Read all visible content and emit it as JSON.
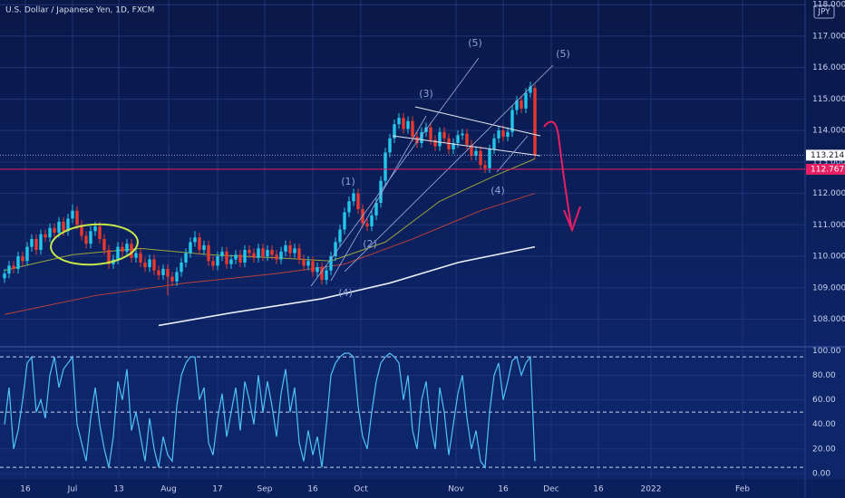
{
  "chart_data": [
    {
      "type": "candlestick",
      "title": "U.S. Dollar / Japanese Yen, 1D, FXCM",
      "currency": "JPY",
      "candles": {
        "open": [
          109.3,
          109.45,
          109.7,
          109.6,
          110.0,
          109.85,
          110.3,
          110.55,
          110.2,
          110.7,
          110.6,
          110.9,
          110.75,
          111.1,
          110.8,
          111.2,
          111.45,
          111.0,
          110.65,
          110.4,
          110.8,
          110.95,
          110.55,
          110.2,
          109.75,
          109.9,
          110.3,
          110.15,
          110.4,
          109.95,
          110.1,
          109.8,
          109.65,
          109.9,
          109.55,
          109.4,
          109.6,
          109.35,
          109.2,
          109.5,
          109.8,
          110.1,
          110.45,
          110.6,
          110.2,
          110.35,
          109.85,
          109.7,
          110.0,
          110.15,
          109.75,
          109.9,
          110.05,
          109.8,
          110.2,
          110.1,
          109.95,
          110.25,
          110.0,
          110.2,
          110.05,
          109.9,
          110.15,
          110.35,
          110.1,
          110.25,
          109.9,
          109.7,
          109.85,
          109.5,
          109.65,
          109.25,
          109.55,
          110.0,
          110.45,
          110.85,
          111.4,
          111.75,
          112.0,
          111.5,
          111.05,
          110.95,
          111.3,
          111.7,
          112.4,
          113.3,
          113.75,
          114.2,
          114.4,
          114.05,
          114.3,
          113.8,
          113.6,
          113.95,
          114.1,
          113.7,
          113.5,
          113.95,
          113.75,
          113.4,
          113.6,
          113.85,
          113.9,
          113.55,
          113.2,
          113.35,
          112.9,
          112.8,
          113.4,
          113.75,
          114.0,
          113.8,
          113.95,
          114.65,
          114.95,
          114.7,
          115.2,
          115.35
        ],
        "high": [
          109.6,
          109.85,
          109.85,
          110.15,
          110.15,
          110.45,
          110.7,
          110.7,
          110.85,
          110.85,
          111.05,
          111.05,
          111.25,
          111.25,
          111.35,
          111.65,
          111.6,
          111.15,
          110.8,
          110.95,
          111.1,
          111.1,
          110.7,
          110.35,
          110.05,
          110.45,
          110.45,
          110.55,
          110.55,
          110.25,
          110.25,
          109.95,
          110.05,
          110.05,
          109.7,
          109.75,
          109.75,
          109.5,
          109.65,
          109.95,
          110.25,
          110.6,
          110.8,
          110.75,
          110.5,
          110.5,
          110.0,
          110.15,
          110.3,
          110.3,
          110.05,
          110.2,
          110.2,
          110.35,
          110.35,
          110.25,
          110.4,
          110.4,
          110.35,
          110.35,
          110.2,
          110.3,
          110.5,
          110.5,
          110.4,
          110.4,
          110.05,
          110.0,
          110.0,
          109.8,
          109.8,
          109.7,
          110.15,
          110.6,
          111.0,
          111.55,
          111.9,
          112.15,
          112.15,
          111.65,
          111.2,
          111.45,
          111.85,
          112.55,
          113.45,
          113.9,
          114.35,
          114.55,
          114.55,
          114.45,
          114.45,
          113.95,
          114.1,
          114.25,
          114.25,
          113.85,
          114.1,
          114.1,
          113.9,
          113.75,
          114.0,
          114.05,
          114.05,
          113.7,
          113.5,
          113.5,
          113.05,
          113.55,
          113.9,
          114.15,
          114.15,
          114.1,
          114.8,
          115.1,
          115.1,
          115.35,
          115.55,
          115.45
        ],
        "low": [
          109.15,
          109.3,
          109.45,
          109.45,
          109.7,
          109.7,
          110.15,
          110.05,
          110.05,
          110.45,
          110.45,
          110.6,
          110.6,
          110.65,
          110.65,
          111.05,
          110.85,
          110.5,
          110.25,
          110.25,
          110.65,
          110.4,
          110.05,
          109.6,
          109.6,
          109.75,
          110.0,
          110.0,
          109.8,
          109.8,
          109.65,
          109.5,
          109.5,
          109.4,
          109.25,
          109.25,
          108.75,
          109.05,
          109.05,
          109.35,
          109.65,
          109.95,
          110.3,
          110.05,
          110.05,
          109.7,
          109.55,
          109.55,
          109.85,
          109.6,
          109.6,
          109.75,
          109.65,
          109.65,
          109.95,
          109.8,
          109.8,
          109.85,
          109.85,
          109.9,
          109.75,
          109.75,
          110.0,
          109.95,
          109.95,
          109.75,
          109.55,
          109.55,
          109.35,
          109.35,
          109.1,
          109.1,
          109.4,
          109.85,
          110.3,
          110.7,
          111.25,
          111.6,
          111.35,
          110.9,
          110.8,
          110.8,
          111.15,
          111.55,
          112.25,
          113.15,
          113.6,
          114.05,
          113.9,
          113.9,
          113.65,
          113.45,
          113.45,
          113.8,
          113.55,
          113.35,
          113.35,
          113.6,
          113.25,
          113.25,
          113.45,
          113.7,
          113.4,
          113.05,
          113.05,
          112.75,
          112.65,
          112.65,
          113.25,
          113.6,
          113.65,
          113.65,
          113.8,
          114.5,
          114.55,
          114.55,
          115.05,
          113.1
        ],
        "close": [
          109.45,
          109.7,
          109.6,
          110.0,
          109.85,
          110.3,
          110.55,
          110.2,
          110.7,
          110.6,
          110.9,
          110.75,
          111.1,
          110.8,
          111.2,
          111.45,
          111.0,
          110.65,
          110.4,
          110.8,
          110.95,
          110.55,
          110.2,
          109.75,
          109.9,
          110.3,
          110.15,
          110.4,
          109.95,
          110.1,
          109.8,
          109.65,
          109.9,
          109.55,
          109.4,
          109.6,
          109.35,
          109.2,
          109.5,
          109.8,
          110.1,
          110.45,
          110.6,
          110.2,
          110.35,
          109.85,
          109.7,
          110.0,
          110.15,
          109.75,
          109.9,
          110.05,
          109.8,
          110.2,
          110.1,
          109.95,
          110.25,
          110.0,
          110.2,
          110.05,
          109.9,
          110.15,
          110.35,
          110.1,
          110.25,
          109.9,
          109.7,
          109.85,
          109.5,
          109.65,
          109.25,
          109.55,
          110.0,
          110.45,
          110.85,
          111.4,
          111.75,
          112.0,
          111.5,
          111.05,
          110.95,
          111.3,
          111.7,
          112.4,
          113.3,
          113.75,
          114.2,
          114.4,
          114.05,
          114.3,
          113.8,
          113.6,
          113.95,
          114.1,
          113.7,
          113.5,
          113.95,
          113.75,
          113.4,
          113.6,
          113.85,
          113.9,
          113.55,
          113.2,
          113.35,
          112.9,
          112.8,
          113.4,
          113.75,
          114.0,
          113.8,
          113.95,
          114.65,
          114.95,
          114.7,
          115.2,
          115.4,
          113.21
        ]
      },
      "up_color": "#22c7ea",
      "down_color": "#e8392f",
      "lines": [
        {
          "color": "#9aa53c",
          "x": [
            0,
            15,
            30,
            45,
            60,
            72,
            84,
            96,
            108,
            117
          ],
          "values": [
            109.55,
            110.05,
            110.25,
            110.05,
            109.95,
            109.85,
            110.45,
            111.75,
            112.55,
            113.1
          ]
        },
        {
          "color": "#b8413b",
          "x": [
            0,
            20,
            40,
            60,
            75,
            90,
            105,
            117
          ],
          "values": [
            108.15,
            108.75,
            109.15,
            109.45,
            109.75,
            110.55,
            111.45,
            112.0
          ]
        },
        {
          "color": "#e8ecf4",
          "x": [
            34,
            50,
            70,
            85,
            100,
            117
          ],
          "values": [
            107.8,
            108.2,
            108.65,
            109.15,
            109.8,
            110.3
          ]
        }
      ],
      "last_price": 113.214,
      "hline": {
        "value": 112.767,
        "label": "112.767",
        "color": "#e91e63"
      },
      "annotations": [
        "(5)",
        "(5)",
        "(3)",
        "(1)",
        "(2)",
        "(4)",
        "(4)"
      ],
      "xlim": [
        -1,
        176.6
      ],
      "xticks": [
        {
          "value": 4.6,
          "label": "16"
        },
        {
          "value": 15,
          "label": "Jul"
        },
        {
          "value": 25.2,
          "label": "13"
        },
        {
          "value": 36.2,
          "label": "Aug"
        },
        {
          "value": 47,
          "label": "17"
        },
        {
          "value": 57.4,
          "label": "Sep"
        },
        {
          "value": 68,
          "label": "16"
        },
        {
          "value": 78.6,
          "label": "Oct"
        },
        {
          "value": 99.6,
          "label": "Nov"
        },
        {
          "value": 110,
          "label": "16"
        },
        {
          "value": 120.6,
          "label": "Dec"
        },
        {
          "value": 131,
          "label": "16"
        },
        {
          "value": 142.6,
          "label": "2022"
        },
        {
          "value": 162.8,
          "label": "Feb"
        }
      ],
      "ylim": [
        107.15,
        118.15
      ],
      "yticks": [
        {
          "value": 108,
          "label": "108.000"
        },
        {
          "value": 109,
          "label": "109.000"
        },
        {
          "value": 110,
          "label": "110.000"
        },
        {
          "value": 111,
          "label": "111.000"
        },
        {
          "value": 112,
          "label": "112.000"
        },
        {
          "value": 113,
          "label": "113.000"
        },
        {
          "value": 114,
          "label": "114.000"
        },
        {
          "value": 115,
          "label": "115.000"
        },
        {
          "value": 116,
          "label": "116.000"
        },
        {
          "value": 117,
          "label": "117.000"
        },
        {
          "value": 118,
          "label": "118.000"
        }
      ],
      "grid": true
    },
    {
      "type": "line",
      "color": "#4fc3f7",
      "values": [
        40,
        70,
        20,
        35,
        60,
        90,
        95,
        50,
        60,
        45,
        80,
        95,
        70,
        85,
        90,
        95,
        40,
        25,
        10,
        45,
        70,
        40,
        20,
        5,
        30,
        75,
        60,
        85,
        35,
        50,
        30,
        10,
        45,
        20,
        5,
        30,
        15,
        10,
        55,
        80,
        90,
        95,
        95,
        60,
        70,
        25,
        15,
        45,
        65,
        30,
        50,
        70,
        35,
        75,
        60,
        40,
        80,
        50,
        75,
        55,
        30,
        65,
        85,
        50,
        70,
        25,
        10,
        35,
        15,
        30,
        5,
        40,
        80,
        90,
        95,
        98,
        98,
        95,
        55,
        30,
        20,
        50,
        75,
        90,
        95,
        98,
        95,
        90,
        60,
        80,
        35,
        20,
        60,
        75,
        40,
        20,
        70,
        50,
        15,
        40,
        65,
        80,
        45,
        20,
        35,
        10,
        5,
        50,
        80,
        90,
        60,
        75,
        92,
        95,
        80,
        90,
        95,
        10
      ],
      "bands": [
        95,
        50,
        5
      ],
      "ylim": [
        -4.5,
        102.5
      ],
      "yticks": [
        {
          "value": 0,
          "label": "0.00"
        },
        {
          "value": 20,
          "label": "20.00"
        },
        {
          "value": 40,
          "label": "40.00"
        },
        {
          "value": 60,
          "label": "60.00"
        },
        {
          "value": 80,
          "label": "80.00"
        },
        {
          "value": 100,
          "label": "100.00"
        }
      ],
      "grid": true
    }
  ]
}
